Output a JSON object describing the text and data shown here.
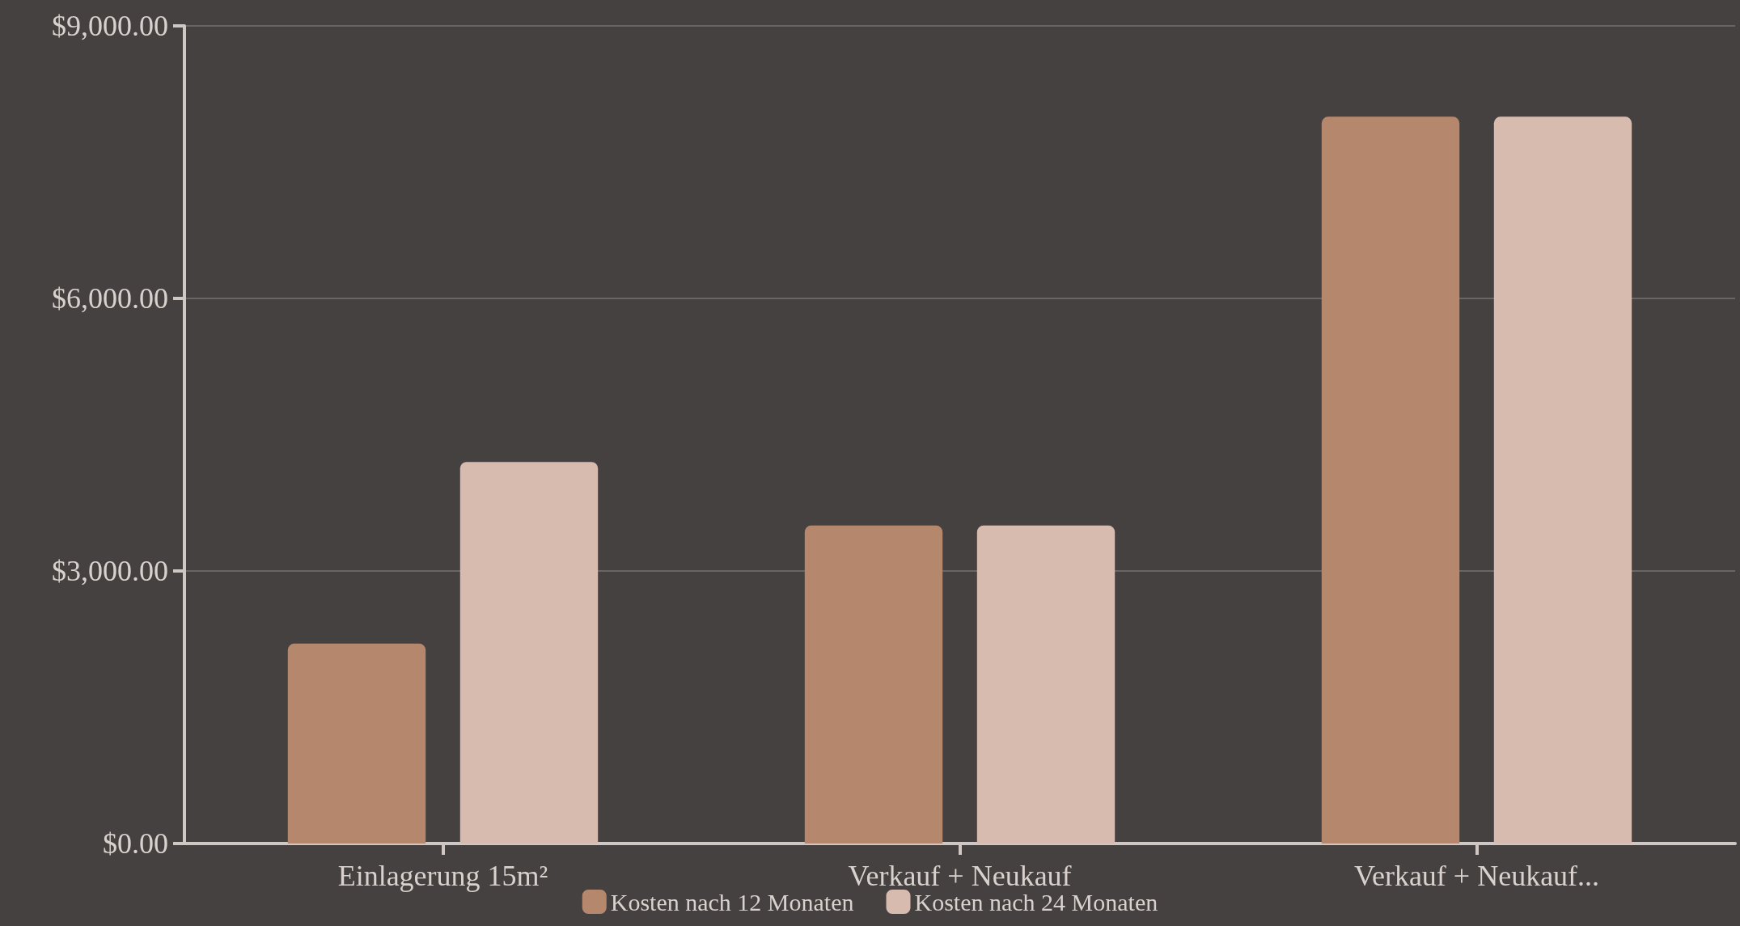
{
  "chart_data": {
    "type": "bar",
    "categories": [
      "Einlagerung 15m²",
      "Verkauf + Neukauf",
      "Verkauf + Neukauf..."
    ],
    "series": [
      {
        "name": "Kosten nach 12 Monaten",
        "color": "#b5876d",
        "values": [
          2200,
          3500,
          8000
        ]
      },
      {
        "name": "Kosten nach 24 Monaten",
        "color": "#d7bbae",
        "values": [
          4200,
          3500,
          8000
        ]
      }
    ],
    "ylim": [
      0,
      9000
    ],
    "yticks": [
      {
        "value": 0,
        "label": "$0.00"
      },
      {
        "value": 3000,
        "label": "$3,000.00"
      },
      {
        "value": 6000,
        "label": "$6,000.00"
      },
      {
        "value": 9000,
        "label": "$9,000.00"
      }
    ],
    "grid": "y",
    "legend": "bottom"
  }
}
